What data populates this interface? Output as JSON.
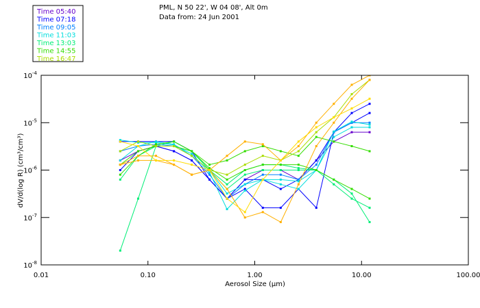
{
  "header": {
    "line1": "PML, N 50 22', W 04 08', Alt 0m",
    "line2": "Data from: 24 Jun 2001"
  },
  "chart_data": {
    "type": "line",
    "title": "PML, N 50 22', W 04 08', Alt 0m",
    "subtitle": "Data from: 24 Jun 2001",
    "xlabel": "Aerosol Size (μm)",
    "ylabel": "dV/d(log R) (cm³/cm³)",
    "xscale": "log",
    "yscale": "log",
    "xlim": [
      0.01,
      100
    ],
    "ylim": [
      1e-08,
      0.0001
    ],
    "xticks": [
      {
        "v": 0.01,
        "label": "0.01"
      },
      {
        "v": 0.1,
        "label": "0.10"
      },
      {
        "v": 1,
        "label": "1.00"
      },
      {
        "v": 10,
        "label": "10.00"
      },
      {
        "v": 100,
        "label": "100.00"
      }
    ],
    "yticks": [
      {
        "v": 0.0001,
        "exp": "-4"
      },
      {
        "v": 1e-05,
        "exp": "-5"
      },
      {
        "v": 1e-06,
        "exp": "-6"
      },
      {
        "v": 1e-07,
        "exp": "-7"
      },
      {
        "v": 1e-08,
        "exp": "-8"
      }
    ],
    "legend_placement": "top-left",
    "x": [
      0.055,
      0.081,
      0.119,
      0.175,
      0.257,
      0.377,
      0.55,
      0.81,
      1.19,
      1.75,
      2.57,
      3.77,
      5.5,
      8.1,
      11.9
    ],
    "series": [
      {
        "name": "Time 05:40",
        "color": "#6600cc",
        "curves": [
          [
            1.6e-06,
            2.5e-06,
            3.2e-06,
            2.5e-06,
            1.6e-06,
            6.3e-07,
            2.5e-07,
            6.3e-07,
            1e-06,
            1e-06,
            6.3e-07,
            1.6e-06,
            4e-06,
            6.3e-06,
            6.3e-06
          ]
        ]
      },
      {
        "name": "Time 07:18",
        "color": "#0000ff",
        "curves": [
          [
            4e-06,
            4e-06,
            4e-06,
            4e-06,
            2.5e-06,
            6.3e-07,
            2.5e-07,
            4e-07,
            1.6e-07,
            1.6e-07,
            4e-07,
            1.6e-07,
            6.3e-06,
            1.6e-05,
            2.5e-05
          ],
          [
            1e-06,
            2.5e-06,
            3.2e-06,
            2.5e-06,
            1.6e-06,
            6.3e-07,
            2.5e-07,
            6.3e-07,
            6.3e-07,
            4e-07,
            6.3e-07,
            1.6e-06,
            6.3e-06,
            1e-05,
            1.6e-05
          ]
        ]
      },
      {
        "name": "Time 09:05",
        "color": "#0080ff",
        "curves": [
          [
            2.5e-06,
            3.2e-06,
            3.5e-06,
            3.2e-06,
            2e-06,
            8e-07,
            2.5e-07,
            5e-07,
            8e-07,
            8e-07,
            6.3e-07,
            1.3e-06,
            6.3e-06,
            1e-05,
            1e-05
          ]
        ]
      },
      {
        "name": "Time 11:03",
        "color": "#00dddd",
        "curves": [
          [
            4.3e-06,
            3.8e-06,
            3.8e-06,
            3.4e-06,
            2.2e-06,
            8.9e-07,
            1.5e-07,
            3.7e-07,
            6.3e-07,
            6.3e-07,
            5.8e-07,
            1e-06,
            6.5e-06,
            1.05e-05,
            9.1e-06
          ],
          [
            1.6e-06,
            3.2e-06,
            4e-06,
            3.5e-06,
            2e-06,
            1e-06,
            3.2e-07,
            5e-07,
            6.3e-07,
            5e-07,
            4e-07,
            1e-06,
            5e-06,
            8e-06,
            8e-06
          ]
        ]
      },
      {
        "name": "Time 13:03",
        "color": "#00ee77",
        "curves": [
          [
            2e-08,
            2.5e-07,
            3.2e-06,
            3.2e-06,
            2.5e-06,
            1e-06,
            4e-07,
            8e-07,
            1e-06,
            1e-06,
            1e-06,
            1e-06,
            6.3e-07,
            3.2e-07,
            8e-08
          ],
          [
            6.3e-07,
            2e-06,
            3.2e-06,
            4e-06,
            2.5e-06,
            1e-06,
            5e-07,
            1e-06,
            1.3e-06,
            1.3e-06,
            1.1e-06,
            1e-06,
            5e-07,
            2.5e-07,
            1.6e-07
          ]
        ]
      },
      {
        "name": "Time 14:55",
        "color": "#33dd00",
        "curves": [
          [
            8e-07,
            2e-06,
            3.5e-06,
            4e-06,
            2.5e-06,
            1.1e-06,
            6.3e-07,
            1e-06,
            1.3e-06,
            1.3e-06,
            1.3e-06,
            1e-06,
            6.3e-07,
            4e-07,
            2.5e-07
          ],
          [
            1.3e-06,
            2.5e-06,
            3.2e-06,
            3.2e-06,
            2.5e-06,
            1.3e-06,
            1.6e-06,
            2.5e-06,
            3.2e-06,
            2.5e-06,
            2e-06,
            5e-06,
            4e-06,
            3.2e-06,
            2.5e-06
          ]
        ]
      },
      {
        "name": "Time 16:47",
        "color": "#aadd00",
        "curves": [
          [
            2.5e-06,
            4e-06,
            3.2e-06,
            3.2e-06,
            2e-06,
            1e-06,
            8e-07,
            1.3e-06,
            2e-06,
            1.6e-06,
            2.5e-06,
            6.3e-06,
            1.3e-05,
            4e-05,
            8e-05
          ]
        ]
      },
      {
        "color": "#ffb000",
        "curves": [
          [
            1.3e-06,
            1.6e-06,
            1.6e-06,
            1.3e-06,
            8e-07,
            1e-06,
            2e-06,
            4e-06,
            3.5e-06,
            1.6e-06,
            3.2e-06,
            1e-05,
            2.5e-05,
            6.3e-05,
            0.0001
          ],
          [
            1.3e-06,
            2e-06,
            2e-06,
            1.3e-06,
            8e-07,
            1e-06,
            4e-07,
            1e-07,
            1.3e-07,
            8e-08,
            5e-07,
            3.2e-06,
            1e-05,
            3.2e-05,
            8e-05
          ]
        ]
      },
      {
        "color": "#ffdd00",
        "curves": [
          [
            4e-06,
            3.2e-06,
            1.6e-06,
            1.6e-06,
            1.3e-06,
            1e-06,
            2.5e-07,
            1.3e-07,
            6.3e-07,
            1.6e-06,
            4e-06,
            8e-06,
            1.3e-05,
            2e-05,
            3.2e-05
          ]
        ]
      }
    ]
  }
}
